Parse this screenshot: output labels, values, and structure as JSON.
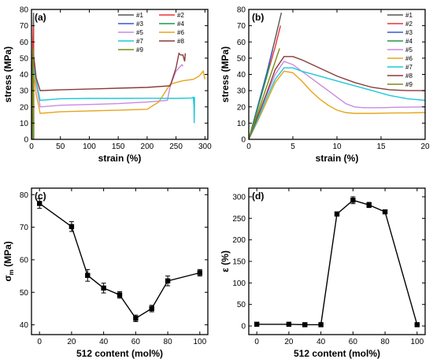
{
  "chart_data": [
    {
      "panel": "(a)",
      "type": "line",
      "xlabel": "strain (%)",
      "ylabel": "stress (MPa)",
      "xlim": [
        0,
        305
      ],
      "ylim": [
        0,
        80
      ],
      "xticks": [
        0,
        50,
        100,
        150,
        200,
        250,
        300
      ],
      "yticks": [
        0,
        10,
        20,
        30,
        40,
        50,
        60,
        70,
        80
      ],
      "legend": "top-right, 2 columns",
      "series": [
        {
          "name": "#1",
          "color": "#555555",
          "x": [
            0,
            1.5,
            3,
            3.6,
            3.9
          ],
          "y": [
            0,
            40,
            70,
            78,
            0
          ]
        },
        {
          "name": "#2",
          "color": "#ee3333",
          "x": [
            0,
            1.5,
            3,
            3.4,
            3.7
          ],
          "y": [
            0,
            38,
            65,
            70,
            0
          ]
        },
        {
          "name": "#3",
          "color": "#3a57d6",
          "x": [
            0,
            1.5,
            2.6,
            2.9
          ],
          "y": [
            0,
            34,
            53,
            0
          ]
        },
        {
          "name": "#4",
          "color": "#1f9a4a",
          "x": [
            0,
            1.5,
            2.3,
            2.6
          ],
          "y": [
            0,
            30,
            47,
            0
          ]
        },
        {
          "name": "#5",
          "color": "#c98ae0",
          "x": [
            0,
            2,
            4,
            8,
            15,
            50,
            100,
            150,
            200,
            235,
            240,
            250,
            260,
            262
          ],
          "y": [
            0,
            28,
            48,
            35,
            20,
            21,
            21.5,
            22,
            23,
            24,
            33,
            42,
            46,
            45
          ]
        },
        {
          "name": "#6",
          "color": "#e6a51c",
          "x": [
            0,
            2,
            4,
            8,
            15,
            50,
            100,
            150,
            200,
            220,
            240,
            260,
            280,
            290,
            297,
            300
          ],
          "y": [
            0,
            28,
            42,
            28,
            16,
            17,
            17.5,
            18,
            18.5,
            23,
            34,
            36,
            37,
            39,
            42,
            37
          ]
        },
        {
          "name": "#7",
          "color": "#1ec8d8",
          "x": [
            0,
            2,
            4,
            8,
            15,
            50,
            100,
            150,
            200,
            250,
            278,
            280,
            281,
            281.5,
            282
          ],
          "y": [
            0,
            28,
            44,
            36,
            24,
            25,
            25.2,
            25.2,
            25.3,
            25.2,
            25.5,
            26,
            20,
            10,
            26
          ]
        },
        {
          "name": "#8",
          "color": "#8b3a3a",
          "x": [
            0,
            2,
            4,
            8,
            15,
            50,
            100,
            150,
            200,
            240,
            250,
            255,
            258,
            262,
            265,
            266
          ],
          "y": [
            0,
            30,
            51,
            38,
            30,
            30.5,
            31,
            31.5,
            32,
            33,
            44,
            53,
            52,
            52,
            48,
            53
          ]
        },
        {
          "name": "#9",
          "color": "#7d8c1a",
          "x": [
            0,
            1.5,
            3,
            3.5
          ],
          "y": [
            0,
            28,
            56,
            0
          ]
        }
      ]
    },
    {
      "panel": "(b)",
      "type": "line",
      "xlabel": "strain (%)",
      "ylabel": "stress (MPa)",
      "xlim": [
        0,
        20
      ],
      "ylim": [
        0,
        80
      ],
      "xticks": [
        0,
        5,
        10,
        15,
        20
      ],
      "yticks": [
        0,
        10,
        20,
        30,
        40,
        50,
        60,
        70,
        80
      ],
      "legend": "top-right, 1 column",
      "series": [
        {
          "name": "#1",
          "color": "#555555",
          "x": [
            0,
            1,
            2,
            3,
            3.7
          ],
          "y": [
            0,
            20,
            40,
            62,
            78
          ]
        },
        {
          "name": "#2",
          "color": "#ee3333",
          "x": [
            0,
            1,
            2,
            3,
            3.6
          ],
          "y": [
            0,
            19,
            38,
            57,
            70
          ]
        },
        {
          "name": "#3",
          "color": "#3a57d6",
          "x": [
            0,
            1,
            2,
            2.7
          ],
          "y": [
            0,
            20,
            40,
            55
          ]
        },
        {
          "name": "#4",
          "color": "#1f9a4a",
          "x": [
            0,
            1,
            2,
            2.4
          ],
          "y": [
            0,
            19,
            38,
            47
          ]
        },
        {
          "name": "#5",
          "color": "#c98ae0",
          "x": [
            0,
            1,
            2,
            3,
            4,
            5,
            6,
            7,
            8,
            9,
            10,
            11,
            12,
            13,
            15,
            17,
            20
          ],
          "y": [
            0,
            13,
            27,
            40,
            48,
            46,
            42,
            38,
            34,
            30,
            26,
            22,
            20,
            19.5,
            19.5,
            19.8,
            20
          ]
        },
        {
          "name": "#6",
          "color": "#e6a51c",
          "x": [
            0,
            1,
            2,
            3,
            4,
            5,
            6,
            7,
            8,
            9,
            10,
            11,
            12,
            14,
            16,
            18,
            20
          ],
          "y": [
            0,
            11,
            23,
            35,
            42,
            41,
            36,
            30,
            25,
            21,
            18,
            16.5,
            16,
            16,
            16.2,
            16.3,
            16.5
          ]
        },
        {
          "name": "#7",
          "color": "#1ec8d8",
          "x": [
            0,
            1,
            2,
            3,
            4,
            5,
            6,
            8,
            10,
            12,
            14,
            16,
            18,
            20
          ],
          "y": [
            0,
            12,
            25,
            37,
            44,
            44,
            42,
            39,
            36,
            33,
            30,
            27,
            25,
            24
          ]
        },
        {
          "name": "#8",
          "color": "#8b3a3a",
          "x": [
            0,
            1,
            2,
            3,
            4,
            5,
            6,
            8,
            10,
            12,
            14,
            16,
            18,
            20
          ],
          "y": [
            0,
            14,
            28,
            43,
            51,
            51,
            49,
            44,
            39,
            35,
            32,
            30.5,
            30,
            30
          ]
        },
        {
          "name": "#9",
          "color": "#7d8c1a",
          "x": [
            0,
            1,
            2,
            3,
            3.5
          ],
          "y": [
            0,
            16,
            32,
            48,
            56
          ]
        }
      ]
    },
    {
      "panel": "(c)",
      "type": "line",
      "xlabel": "512 content (mol%)",
      "ylabel": "σm (MPa)",
      "ylabel_main": "σ",
      "ylabel_sub": "m",
      "ylabel_unit": " (MPa)",
      "xlim": [
        -5,
        105
      ],
      "ylim": [
        37,
        82
      ],
      "xticks": [
        0,
        20,
        40,
        60,
        80,
        100
      ],
      "yticks": [
        40,
        50,
        60,
        70,
        80
      ],
      "color": "#000000",
      "x": [
        0,
        20,
        30,
        40,
        50,
        60,
        70,
        80,
        100
      ],
      "y": [
        77.3,
        70.2,
        55.2,
        51.3,
        49.2,
        42,
        45,
        53.5,
        56
      ],
      "err": [
        1.5,
        1.5,
        1.8,
        1.5,
        1,
        1,
        1,
        1.5,
        1
      ]
    },
    {
      "panel": "(d)",
      "type": "line",
      "xlabel": "512 content (mol%)",
      "ylabel": "ε (%)",
      "xlim": [
        -5,
        105
      ],
      "ylim": [
        -20,
        320
      ],
      "xticks": [
        0,
        20,
        40,
        60,
        80,
        100
      ],
      "yticks": [
        0,
        50,
        100,
        150,
        200,
        250,
        300
      ],
      "color": "#000000",
      "x": [
        0,
        20,
        30,
        40,
        50,
        60,
        70,
        80,
        100
      ],
      "y": [
        4,
        4,
        3,
        3,
        260,
        292,
        281,
        265,
        3
      ],
      "err": [
        2,
        2,
        2,
        2,
        5,
        8,
        6,
        4,
        2
      ]
    }
  ]
}
